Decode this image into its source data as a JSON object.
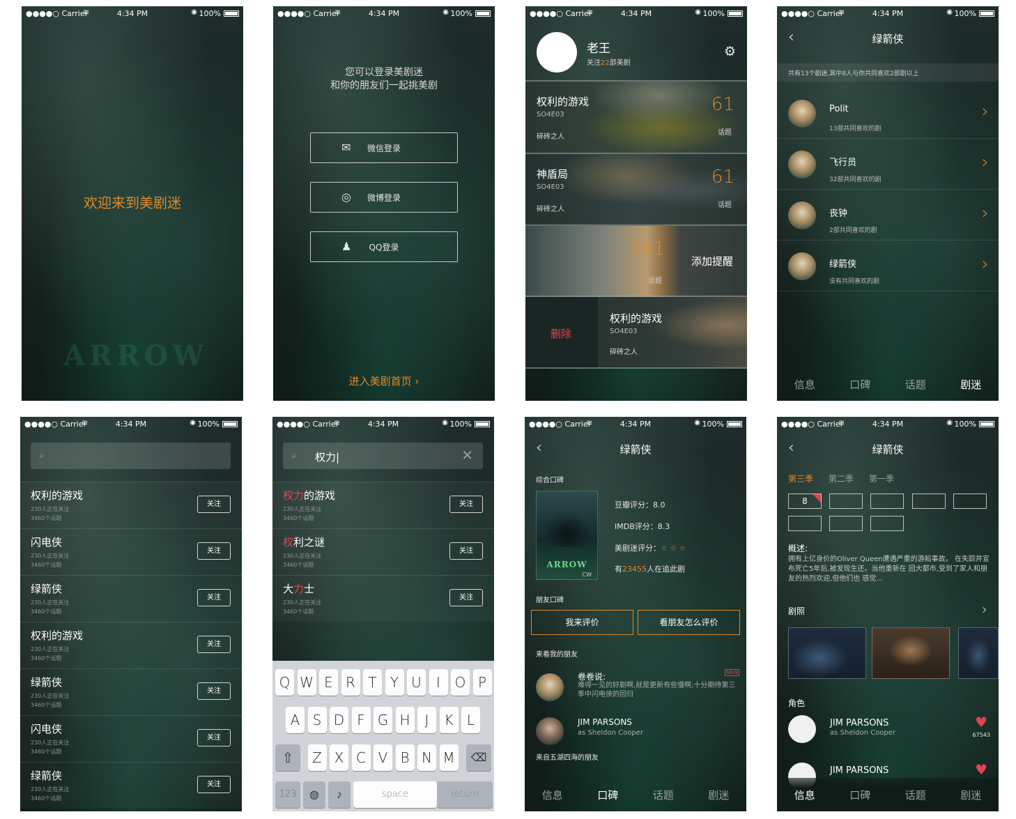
{
  "status": {
    "carrier": "●●●●○ Carrier",
    "time": "4:34 PM",
    "battery": "100%"
  },
  "s1": {
    "welcome": "欢迎来到美剧迷",
    "watermark": "ARROW"
  },
  "s2": {
    "hint_line1": "您可以登录美剧迷",
    "hint_line2": "和你的朋友们一起挑美剧",
    "wechat": "微信登录",
    "weibo": "微博登录",
    "qq": "QQ登录",
    "enter": "进入美剧首页"
  },
  "s3": {
    "name": "老王",
    "follow_prefix": "关注",
    "follow_count": "22",
    "follow_suffix": "部美剧",
    "cards": [
      {
        "title": "权利的游戏",
        "ep": "SO4E03",
        "sub": "碎砖之人",
        "num": "61",
        "lbl": "话题"
      },
      {
        "title": "神盾局",
        "ep": "SO4E03",
        "sub": "碎砖之人",
        "num": "61",
        "lbl": "话题"
      },
      {
        "num": "161",
        "lbl": "话题",
        "remind": "添加提醒"
      },
      {
        "delete": "删除",
        "title": "权利的游戏",
        "ep": "SO4E03",
        "sub": "碎砖之人"
      }
    ]
  },
  "s4": {
    "title": "绿箭侠",
    "summary": "共有13个剧迷,其中8人与你共同喜欢2部剧以上",
    "fans": [
      {
        "name": "Polit",
        "desc": "13部共同喜欢的剧"
      },
      {
        "name": "飞行员",
        "desc": "32部共同喜欢的剧"
      },
      {
        "name": "丧钟",
        "desc": "2部共同喜欢的剧"
      },
      {
        "name": "绿箭侠",
        "desc": "没有共同喜欢的剧"
      }
    ]
  },
  "tabs": [
    "信息",
    "口碑",
    "话题",
    "剧迷"
  ],
  "s5": {
    "items": [
      {
        "title": "权利的游戏",
        "m1": "230人正在关注",
        "m2": "3460个话题",
        "btn": "关注"
      },
      {
        "title": "闪电侠",
        "m1": "230人正在关注",
        "m2": "3460个话题",
        "btn": "关注"
      },
      {
        "title": "绿箭侠",
        "m1": "230人正在关注",
        "m2": "3460个话题",
        "btn": "关注"
      },
      {
        "title": "权利的游戏",
        "m1": "230人正在关注",
        "m2": "3460个话题",
        "btn": "关注"
      },
      {
        "title": "绿箭侠",
        "m1": "230人正在关注",
        "m2": "3460个话题",
        "btn": "关注"
      },
      {
        "title": "闪电侠",
        "m1": "230人正在关注",
        "m2": "3460个话题",
        "btn": "关注"
      },
      {
        "title": "绿箭侠",
        "m1": "230人正在关注",
        "m2": "3460个话题",
        "btn": "关注"
      }
    ]
  },
  "s6": {
    "query": "权力|",
    "items": [
      {
        "hl": "权力",
        "rest": "的游戏",
        "m1": "230人正在关注",
        "m2": "3460个话题",
        "btn": "关注"
      },
      {
        "hl": "权",
        "rest": "利之谜",
        "m1": "230人正在关注",
        "m2": "3460个话题",
        "btn": "关注"
      },
      {
        "pre": "大",
        "hl": "力",
        "rest": "士",
        "m1": "230人正在关注",
        "m2": "3460个话题",
        "btn": "关注"
      }
    ],
    "row1": [
      "Q",
      "W",
      "E",
      "R",
      "T",
      "Y",
      "U",
      "I",
      "O",
      "P"
    ],
    "row2": [
      "A",
      "S",
      "D",
      "F",
      "G",
      "H",
      "J",
      "K",
      "L"
    ],
    "row3": [
      "Z",
      "X",
      "C",
      "V",
      "B",
      "N",
      "M"
    ],
    "num_key": "123",
    "space": "space",
    "return": "return"
  },
  "s7": {
    "title": "绿箭侠",
    "overall": "综合口碑",
    "poster_title": "ARROW",
    "poster_logo": "CW",
    "douban": "豆瓣评分：8.0",
    "imdb": "IMDB评分：8.3",
    "mjm": "美剧迷评分：",
    "stars": "☆ ☆ ☆",
    "chase_prefix": "有",
    "chase_count": "23455",
    "chase_suffix": "人在追此剧",
    "friends_lbl": "朋友口碑",
    "btn_mine": "我来评价",
    "btn_friends": "看朋友怎么评价",
    "came_lbl": "来看我的朋友",
    "rev1_name": "卷卷说:",
    "rev1_text": "难得一见的好剧啊,就是更新有些慢啊,十分期待第三季中闪电侠的回归",
    "rev1_new": "NEW",
    "rev2_name": "JIM PARSONS",
    "rev2_text": "as Sheldon Cooper",
    "world_lbl": "来自五湖四海的朋友"
  },
  "s8": {
    "title": "绿箭侠",
    "seasons": [
      "第三季",
      "第二季",
      "第一季"
    ],
    "ep_current": "8",
    "summary_h": "概述:",
    "summary": "拥有上亿身价的Oliver Queen遭遇严重的游船事故。 在失踪并宣布死亡5年后,被发现生还。当他重新在 回大都市,受到了家人和朋友的热烈欢迎,但他们也 感觉...",
    "stills_h": "剧照",
    "roles_h": "角色",
    "role_name": "JIM PARSONS",
    "role_as": "as Sheldon Cooper",
    "role_likes": "67543",
    "role2_name": "JIM PARSONS"
  }
}
